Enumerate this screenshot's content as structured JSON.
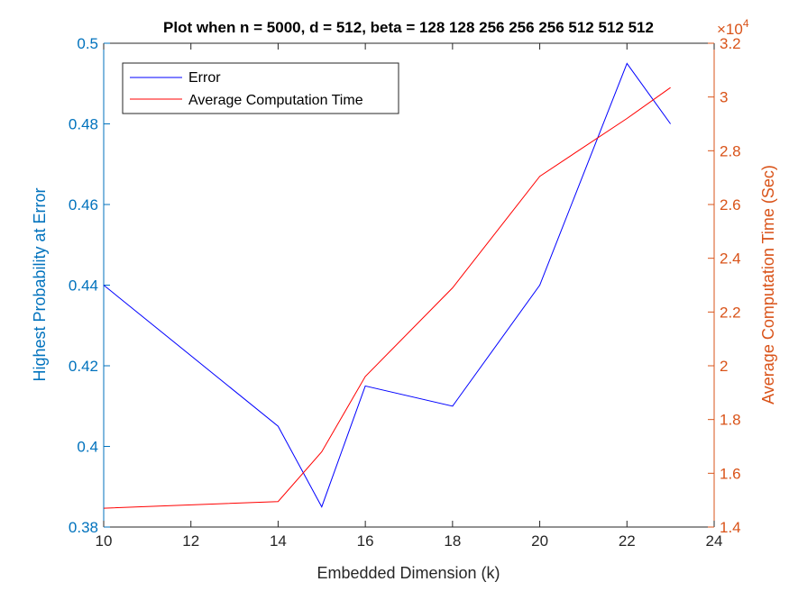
{
  "chart_data": {
    "type": "line",
    "title": "Plot when n = 5000, d = 512, beta = 128  128  256  256  256  512  512  512",
    "xlabel": "Embedded Dimension (k)",
    "x_ticks": [
      10,
      12,
      14,
      16,
      18,
      20,
      22,
      24
    ],
    "xlim": [
      10,
      24
    ],
    "left_axis": {
      "label": "Highest Probability at Error",
      "ylim": [
        0.38,
        0.5
      ],
      "ticks": [
        0.38,
        0.4,
        0.42,
        0.44,
        0.46,
        0.48,
        0.5
      ],
      "tick_labels": [
        "0.38",
        "0.4",
        "0.42",
        "0.44",
        "0.46",
        "0.48",
        "0.5"
      ],
      "color": "#0072BD"
    },
    "right_axis": {
      "label": "Average Computation Time (Sec)",
      "ylim": [
        1.4,
        3.2
      ],
      "ticks": [
        1.4,
        1.6,
        1.8,
        2.0,
        2.2,
        2.4,
        2.6,
        2.8,
        3.0,
        3.2
      ],
      "tick_labels": [
        "1.4",
        "1.6",
        "1.8",
        "2",
        "2.2",
        "2.4",
        "2.6",
        "2.8",
        "3",
        "3.2"
      ],
      "exponent_label": "×10",
      "exponent_power": "4",
      "color": "#D95319"
    },
    "series": [
      {
        "name": "Error",
        "axis": "left",
        "color": "#0000FF",
        "x": [
          10,
          14,
          15,
          16,
          18,
          20,
          22,
          23
        ],
        "y": [
          0.44,
          0.405,
          0.385,
          0.415,
          0.41,
          0.44,
          0.495,
          0.48
        ]
      },
      {
        "name": "Average Computation Time",
        "axis": "right",
        "color": "#FF0000",
        "x": [
          10,
          14,
          15,
          16,
          18,
          20,
          22,
          23
        ],
        "y": [
          1.47,
          1.495,
          1.68,
          1.96,
          2.29,
          2.705,
          2.92,
          3.035
        ]
      }
    ],
    "legend_position": "top-left",
    "grid": false
  }
}
